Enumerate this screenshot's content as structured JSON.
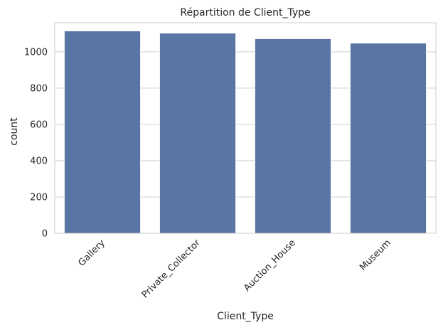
{
  "chart_data": {
    "type": "bar",
    "title": "Répartition de Client_Type",
    "xlabel": "Client_Type",
    "ylabel": "count",
    "categories": [
      "Gallery",
      "Private_Collector",
      "Auction_House",
      "Museum"
    ],
    "values": [
      1115,
      1103,
      1072,
      1048
    ],
    "ylim": [
      0,
      1160
    ],
    "yticks": [
      0,
      200,
      400,
      600,
      800,
      1000
    ],
    "grid": true,
    "bar_color": "#5875a4",
    "xtick_rotation": 45
  }
}
